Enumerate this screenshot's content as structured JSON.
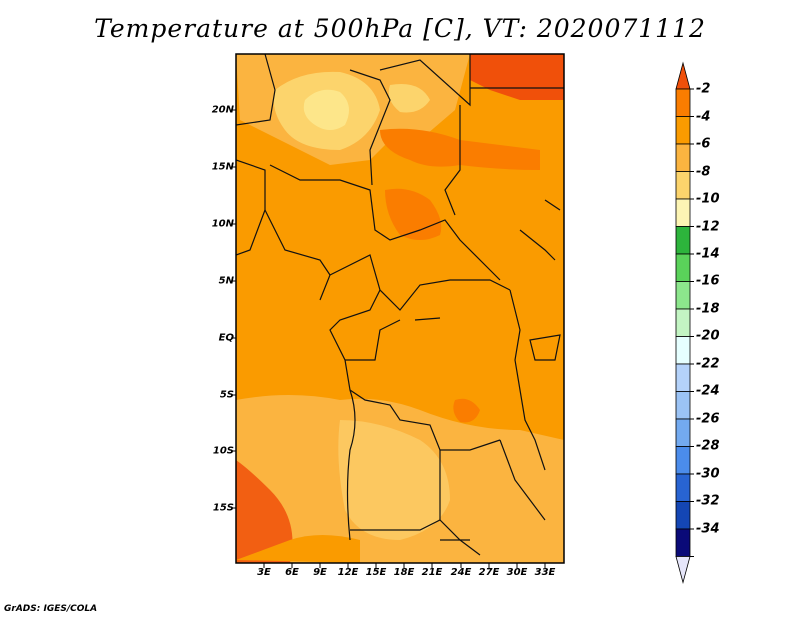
{
  "title": "Temperature at 500hPa [C], VT: 2020071112",
  "credit": "GrADS: IGES/COLA",
  "map": {
    "lat_labels": [
      "20N",
      "15N",
      "10N",
      "5N",
      "EQ",
      "5S",
      "10S",
      "15S"
    ],
    "lon_labels": [
      "3E",
      "6E",
      "9E",
      "12E",
      "15E",
      "18E",
      "21E",
      "24E",
      "27E",
      "30E",
      "33E"
    ]
  },
  "colorbar": {
    "labels": [
      "-2",
      "-4",
      "-6",
      "-8",
      "-10",
      "-12",
      "-14",
      "-16",
      "-18",
      "-20",
      "-22",
      "-24",
      "-26",
      "-28",
      "-30",
      "-32",
      "-34"
    ],
    "colors": [
      "#f0500a",
      "#fa7d00",
      "#fa9b00",
      "#fbb440",
      "#fcd46c",
      "#fdf5b4",
      "#2db43c",
      "#5ad25a",
      "#8ce68c",
      "#c3f5c3",
      "#e6ffff",
      "#b4d2fa",
      "#9bc3f5",
      "#73aaf0",
      "#4b8ceb",
      "#2864d2",
      "#1446b4",
      "#0a0a78",
      "#e6e6fa"
    ]
  }
}
